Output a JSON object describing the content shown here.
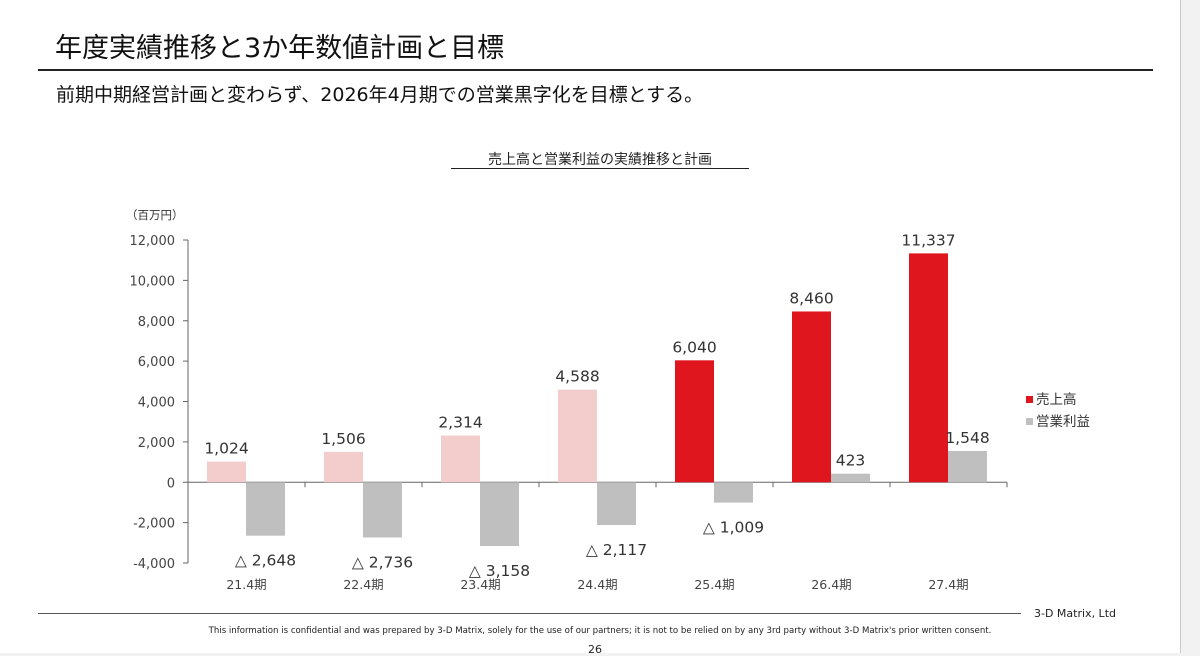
{
  "page": {
    "title": "年度実績推移と3か年数値計画と目標",
    "subtitle": "前期中期経営計画と変わらず、2026年4月期での営業黒字化を目標とする。",
    "company": "3-D Matrix, Ltd",
    "confidential_note": "This information is confidential and was prepared by 3-D Matrix, solely for the use of our partners; it is not to be relied on by any 3rd party without 3-D Matrix's prior written consent.",
    "page_number": "26"
  },
  "chart_data": {
    "type": "bar",
    "title": "売上高と営業利益の実績推移と計画",
    "unit_label": "（百万円）",
    "categories": [
      "21.4期",
      "22.4期",
      "23.4期",
      "24.4期",
      "25.4期",
      "26.4期",
      "27.4期"
    ],
    "series": [
      {
        "name": "売上高",
        "values": [
          1024,
          1506,
          2314,
          4588,
          6040,
          8460,
          11337
        ],
        "labels": [
          "1,024",
          "1,506",
          "2,314",
          "4,588",
          "6,040",
          "8,460",
          "11,337"
        ],
        "colors": [
          "#f3cccc",
          "#f3cccc",
          "#f3cccc",
          "#f3cccc",
          "#e0161f",
          "#e0161f",
          "#e0161f"
        ]
      },
      {
        "name": "営業利益",
        "values": [
          -2648,
          -2736,
          -3158,
          -2117,
          -1009,
          423,
          1548
        ],
        "labels": [
          "△ 2,648",
          "△ 2,736",
          "△ 3,158",
          "△ 2,117",
          "△ 1,009",
          "423",
          "1,548"
        ],
        "colors": [
          "#bfbfbf",
          "#bfbfbf",
          "#bfbfbf",
          "#bfbfbf",
          "#bfbfbf",
          "#bfbfbf",
          "#bfbfbf"
        ]
      }
    ],
    "ylim": [
      -4000,
      12000
    ],
    "yticks": [
      -4000,
      -2000,
      0,
      2000,
      4000,
      6000,
      8000,
      10000,
      12000
    ],
    "ytick_labels": [
      "-4,000",
      "-2,000",
      "0",
      "2,000",
      "4,000",
      "6,000",
      "8,000",
      "10,000",
      "12,000"
    ],
    "legend": {
      "position": "right",
      "items": [
        {
          "label": "売上高",
          "color": "#e0161f"
        },
        {
          "label": "営業利益",
          "color": "#bfbfbf"
        }
      ]
    },
    "grid": false
  }
}
